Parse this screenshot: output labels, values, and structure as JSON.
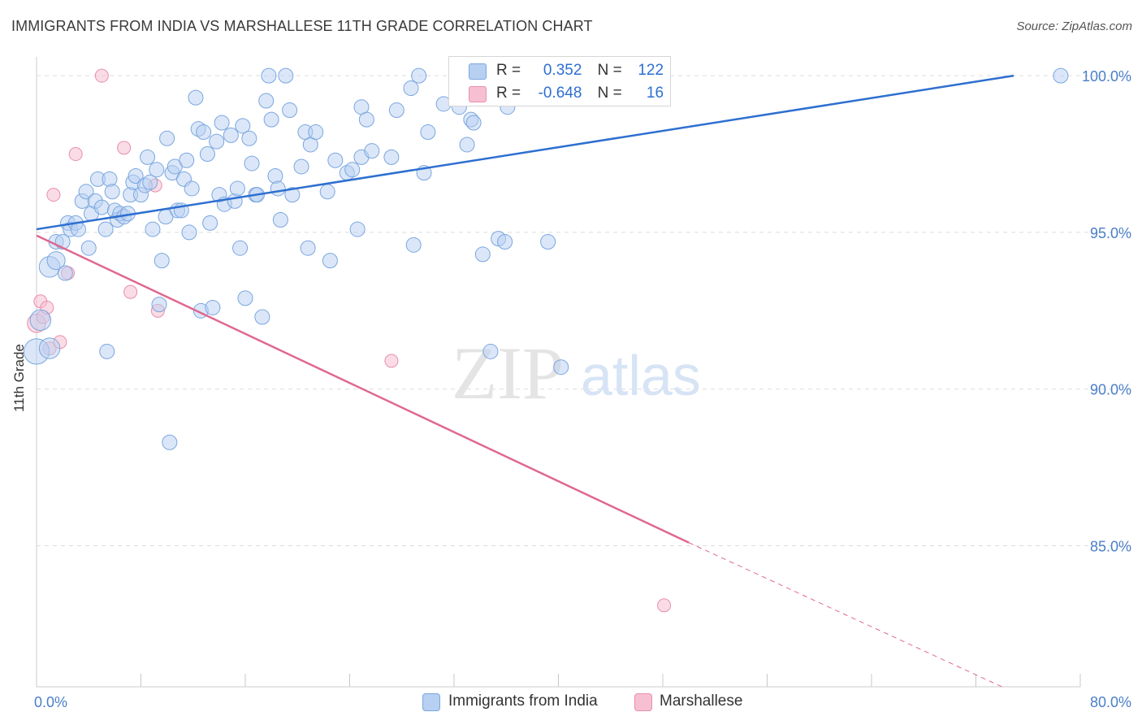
{
  "title": "IMMIGRANTS FROM INDIA VS MARSHALLESE 11TH GRADE CORRELATION CHART",
  "source": "Source: ZipAtlas.com",
  "watermark": {
    "zip": "ZIP",
    "atlas": "atlas"
  },
  "legend": {
    "r_label": "R =",
    "n_label": "N =",
    "series": [
      {
        "name": "Immigrants from India",
        "r": "0.352",
        "n": "122",
        "color": "#7aa6e0",
        "fill": "#b7d0f2",
        "line": "#2e6fd0"
      },
      {
        "name": "Marshallese",
        "r": "-0.648",
        "n": "16",
        "color": "#e98fab",
        "fill": "#f6c0d2",
        "line": "#e0688f"
      }
    ]
  },
  "chart_data": {
    "type": "scatter",
    "title": "IMMIGRANTS FROM INDIA VS MARSHALLESE 11TH GRADE CORRELATION CHART",
    "xlabel": "",
    "ylabel": "11th Grade",
    "xlim": [
      0,
      80
    ],
    "ylim": [
      80.5,
      100.6
    ],
    "x_tick_labels": [
      "0.0%",
      "80.0%"
    ],
    "y_ticks": [
      85,
      90,
      95,
      100
    ],
    "y_tick_labels": [
      "85.0%",
      "90.0%",
      "95.0%",
      "100.0%"
    ],
    "series": [
      {
        "name": "Immigrants from India",
        "r": 0.352,
        "n": 122,
        "trend": {
          "x0": 0,
          "y0": 95.1,
          "x1": 74.9,
          "y1": 100.0
        },
        "points": [
          [
            0.0,
            91.2,
            3
          ],
          [
            0.3,
            92.2,
            2
          ],
          [
            1.0,
            91.3,
            2
          ],
          [
            1.0,
            93.9,
            2
          ],
          [
            1.5,
            94.1,
            1.5
          ],
          [
            1.5,
            94.7,
            1
          ],
          [
            2.0,
            94.7,
            1
          ],
          [
            2.2,
            93.7,
            1
          ],
          [
            2.4,
            95.3,
            1
          ],
          [
            2.6,
            95.1,
            1
          ],
          [
            3.0,
            95.3,
            1
          ],
          [
            3.2,
            95.1,
            1
          ],
          [
            3.5,
            96.0,
            1
          ],
          [
            3.8,
            96.3,
            1
          ],
          [
            4.0,
            94.5,
            1
          ],
          [
            4.2,
            95.6,
            1
          ],
          [
            4.5,
            96.0,
            1
          ],
          [
            4.7,
            96.7,
            1
          ],
          [
            5.0,
            95.8,
            1
          ],
          [
            5.3,
            95.1,
            1
          ],
          [
            5.4,
            91.2,
            1
          ],
          [
            5.6,
            96.7,
            1
          ],
          [
            5.8,
            96.3,
            1
          ],
          [
            6.0,
            95.7,
            1
          ],
          [
            6.2,
            95.4,
            1
          ],
          [
            6.4,
            95.6,
            1
          ],
          [
            6.7,
            95.5,
            1
          ],
          [
            7.0,
            95.6,
            1
          ],
          [
            7.2,
            96.2,
            1
          ],
          [
            7.4,
            96.6,
            1
          ],
          [
            7.6,
            96.8,
            1
          ],
          [
            8.0,
            96.2,
            1
          ],
          [
            8.3,
            96.5,
            1
          ],
          [
            8.5,
            97.4,
            1
          ],
          [
            8.7,
            96.6,
            1
          ],
          [
            8.9,
            95.1,
            1
          ],
          [
            9.2,
            97.0,
            1
          ],
          [
            9.4,
            92.7,
            1
          ],
          [
            9.6,
            94.1,
            1
          ],
          [
            9.9,
            95.5,
            1
          ],
          [
            10.0,
            98.0,
            1
          ],
          [
            10.2,
            88.3,
            1
          ],
          [
            10.4,
            96.9,
            1
          ],
          [
            10.6,
            97.1,
            1
          ],
          [
            10.8,
            95.7,
            1
          ],
          [
            11.1,
            95.7,
            1
          ],
          [
            11.3,
            96.7,
            1
          ],
          [
            11.5,
            97.3,
            1
          ],
          [
            11.7,
            95.0,
            1
          ],
          [
            11.9,
            96.4,
            1
          ],
          [
            12.2,
            99.3,
            1
          ],
          [
            12.4,
            98.3,
            1
          ],
          [
            12.6,
            92.5,
            1
          ],
          [
            12.8,
            98.2,
            1
          ],
          [
            13.1,
            97.5,
            1
          ],
          [
            13.3,
            95.3,
            1
          ],
          [
            13.5,
            92.6,
            1
          ],
          [
            13.8,
            97.9,
            1
          ],
          [
            14.0,
            96.2,
            1
          ],
          [
            14.2,
            98.5,
            1
          ],
          [
            14.4,
            95.9,
            1
          ],
          [
            14.9,
            98.1,
            1
          ],
          [
            15.2,
            96.0,
            1
          ],
          [
            15.4,
            96.4,
            1
          ],
          [
            15.6,
            94.5,
            1
          ],
          [
            15.8,
            98.4,
            1
          ],
          [
            16.0,
            92.9,
            1
          ],
          [
            16.3,
            98.0,
            1
          ],
          [
            16.5,
            97.2,
            1
          ],
          [
            16.8,
            96.2,
            1
          ],
          [
            16.9,
            96.2,
            1
          ],
          [
            17.3,
            92.3,
            1
          ],
          [
            17.6,
            99.2,
            1
          ],
          [
            17.8,
            100.0,
            1
          ],
          [
            18.0,
            98.6,
            1
          ],
          [
            18.3,
            96.8,
            1
          ],
          [
            18.5,
            96.4,
            1
          ],
          [
            18.7,
            95.4,
            1
          ],
          [
            19.1,
            100.0,
            1
          ],
          [
            19.4,
            98.9,
            1
          ],
          [
            19.6,
            96.2,
            1
          ],
          [
            20.3,
            97.1,
            1
          ],
          [
            20.6,
            98.2,
            1
          ],
          [
            20.8,
            94.5,
            1
          ],
          [
            21.0,
            97.8,
            1
          ],
          [
            21.4,
            98.2,
            1
          ],
          [
            22.3,
            96.3,
            1
          ],
          [
            22.5,
            94.1,
            1
          ],
          [
            22.9,
            97.3,
            1
          ],
          [
            23.8,
            96.9,
            1
          ],
          [
            24.2,
            97.0,
            1
          ],
          [
            24.6,
            95.1,
            1
          ],
          [
            24.9,
            97.4,
            1
          ],
          [
            24.9,
            99.0,
            1
          ],
          [
            25.3,
            98.6,
            1
          ],
          [
            25.7,
            97.6,
            1
          ],
          [
            27.2,
            97.4,
            1
          ],
          [
            27.6,
            98.9,
            1
          ],
          [
            28.7,
            99.6,
            1
          ],
          [
            28.9,
            94.6,
            1
          ],
          [
            29.3,
            100.0,
            1
          ],
          [
            29.7,
            96.9,
            1
          ],
          [
            30.0,
            98.2,
            1
          ],
          [
            31.2,
            99.1,
            1
          ],
          [
            32.4,
            99.0,
            1
          ],
          [
            33.0,
            97.8,
            1
          ],
          [
            33.3,
            98.6,
            1
          ],
          [
            33.5,
            98.5,
            1
          ],
          [
            34.2,
            94.3,
            1
          ],
          [
            34.8,
            91.2,
            1
          ],
          [
            35.4,
            94.8,
            1
          ],
          [
            35.9,
            94.7,
            1
          ],
          [
            36.1,
            99.0,
            1
          ],
          [
            39.2,
            94.7,
            1
          ],
          [
            40.2,
            90.7,
            1
          ],
          [
            78.5,
            100.0,
            1
          ]
        ]
      },
      {
        "name": "Marshallese",
        "r": -0.648,
        "n": 16,
        "trend": {
          "x0": 0,
          "y0": 94.9,
          "x1": 50.0,
          "y1": 85.1,
          "dashed_to": {
            "x": 74.0,
            "y": 80.5
          }
        },
        "points": [
          [
            0.0,
            92.1,
            2
          ],
          [
            0.3,
            92.8,
            1
          ],
          [
            0.5,
            92.3,
            1
          ],
          [
            0.8,
            92.6,
            1
          ],
          [
            1.0,
            91.3,
            1
          ],
          [
            1.3,
            96.2,
            1
          ],
          [
            1.8,
            91.5,
            1
          ],
          [
            2.4,
            93.7,
            1
          ],
          [
            3.0,
            97.5,
            1
          ],
          [
            5.0,
            100.0,
            1
          ],
          [
            6.7,
            97.7,
            1
          ],
          [
            7.2,
            93.1,
            1
          ],
          [
            9.1,
            96.5,
            1
          ],
          [
            9.3,
            92.5,
            1
          ],
          [
            27.2,
            90.9,
            1
          ],
          [
            48.1,
            83.1,
            1
          ]
        ]
      }
    ]
  }
}
